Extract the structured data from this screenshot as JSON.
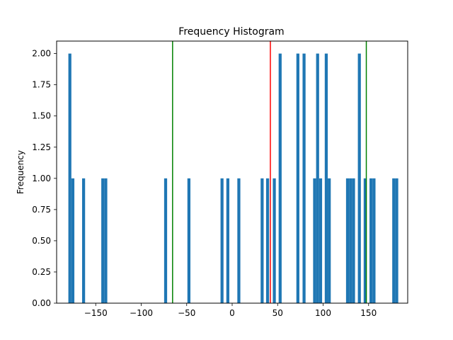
{
  "chart_data": {
    "type": "bar",
    "title": "Frequency Histogram",
    "xlabel": "",
    "ylabel": "Frequency",
    "xlim": [
      -193,
      193
    ],
    "ylim": [
      0,
      2.1
    ],
    "bin_width": 3.3,
    "x_ticks": [
      -150,
      -100,
      -50,
      0,
      50,
      100,
      150
    ],
    "x_tick_labels": [
      "−150",
      "−100",
      "−50",
      "0",
      "50",
      "100",
      "150"
    ],
    "y_ticks": [
      0,
      0.25,
      0.5,
      0.75,
      1.0,
      1.25,
      1.5,
      1.75,
      2.0
    ],
    "y_tick_labels": [
      "0.00",
      "0.25",
      "0.50",
      "0.75",
      "1.00",
      "1.25",
      "1.50",
      "1.75",
      "2.00"
    ],
    "bar_color": "#1f77b4",
    "bins": [
      {
        "x": -180.1,
        "count": 2
      },
      {
        "x": -176.8,
        "count": 1
      },
      {
        "x": -165.0,
        "count": 1
      },
      {
        "x": -143.9,
        "count": 1
      },
      {
        "x": -140.6,
        "count": 1
      },
      {
        "x": -74.8,
        "count": 1
      },
      {
        "x": -49.2,
        "count": 1
      },
      {
        "x": -12.8,
        "count": 1
      },
      {
        "x": -6.4,
        "count": 1
      },
      {
        "x": 5.7,
        "count": 1
      },
      {
        "x": 31.3,
        "count": 1
      },
      {
        "x": 37.3,
        "count": 1
      },
      {
        "x": 44.7,
        "count": 1
      },
      {
        "x": 51.1,
        "count": 2
      },
      {
        "x": 70.6,
        "count": 2
      },
      {
        "x": 77.4,
        "count": 2
      },
      {
        "x": 89.0,
        "count": 1
      },
      {
        "x": 92.3,
        "count": 2
      },
      {
        "x": 95.6,
        "count": 1
      },
      {
        "x": 101.8,
        "count": 2
      },
      {
        "x": 105.1,
        "count": 1
      },
      {
        "x": 125.2,
        "count": 1
      },
      {
        "x": 128.5,
        "count": 1
      },
      {
        "x": 131.8,
        "count": 1
      },
      {
        "x": 138.2,
        "count": 2
      },
      {
        "x": 144.6,
        "count": 1
      },
      {
        "x": 151.0,
        "count": 1
      },
      {
        "x": 154.3,
        "count": 1
      },
      {
        "x": 176.0,
        "count": 1
      },
      {
        "x": 179.3,
        "count": 1
      }
    ],
    "vertical_lines": [
      {
        "x": -65.5,
        "color": "#008000"
      },
      {
        "x": 42.0,
        "color": "#ff0000"
      },
      {
        "x": 147.5,
        "color": "#008000"
      }
    ],
    "grid": false,
    "legend": "none"
  }
}
